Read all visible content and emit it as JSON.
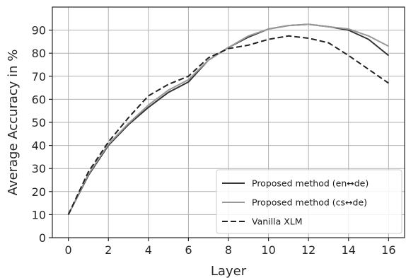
{
  "chart_data": {
    "type": "line",
    "title": "",
    "xlabel": "Layer",
    "ylabel": "Average Accuracy in %",
    "xlim": [
      -0.8,
      16.8
    ],
    "ylim": [
      0,
      100
    ],
    "x_ticks": [
      0,
      2,
      4,
      6,
      8,
      10,
      12,
      14,
      16
    ],
    "y_ticks": [
      0,
      10,
      20,
      30,
      40,
      50,
      60,
      70,
      80,
      90
    ],
    "grid": true,
    "legend_position": "lower-right",
    "x": [
      0,
      1,
      2,
      3,
      4,
      5,
      6,
      7,
      8,
      9,
      10,
      11,
      12,
      13,
      14,
      15,
      16
    ],
    "series": [
      {
        "name": "Proposed method (en↔de)",
        "color": "#333333",
        "dash": "solid",
        "values": [
          10,
          27,
          40,
          49,
          56.5,
          63,
          67.5,
          77,
          82.5,
          87,
          90.5,
          92,
          92.5,
          91.5,
          90,
          86,
          79
        ]
      },
      {
        "name": "Proposed method (cs↔de)",
        "color": "#999999",
        "dash": "solid",
        "values": [
          10,
          27.5,
          40.5,
          49.5,
          57.5,
          64,
          68.5,
          77,
          82.5,
          87.5,
          90.5,
          92,
          92.5,
          91.5,
          90.5,
          87.5,
          83
        ]
      },
      {
        "name": "Vanilla XLM",
        "color": "#222222",
        "dash": "dashed",
        "values": [
          10,
          28.5,
          41.5,
          52,
          61.5,
          66.5,
          70,
          78,
          82,
          83.5,
          86,
          87.5,
          86.5,
          84.5,
          79,
          73,
          67
        ]
      }
    ]
  }
}
